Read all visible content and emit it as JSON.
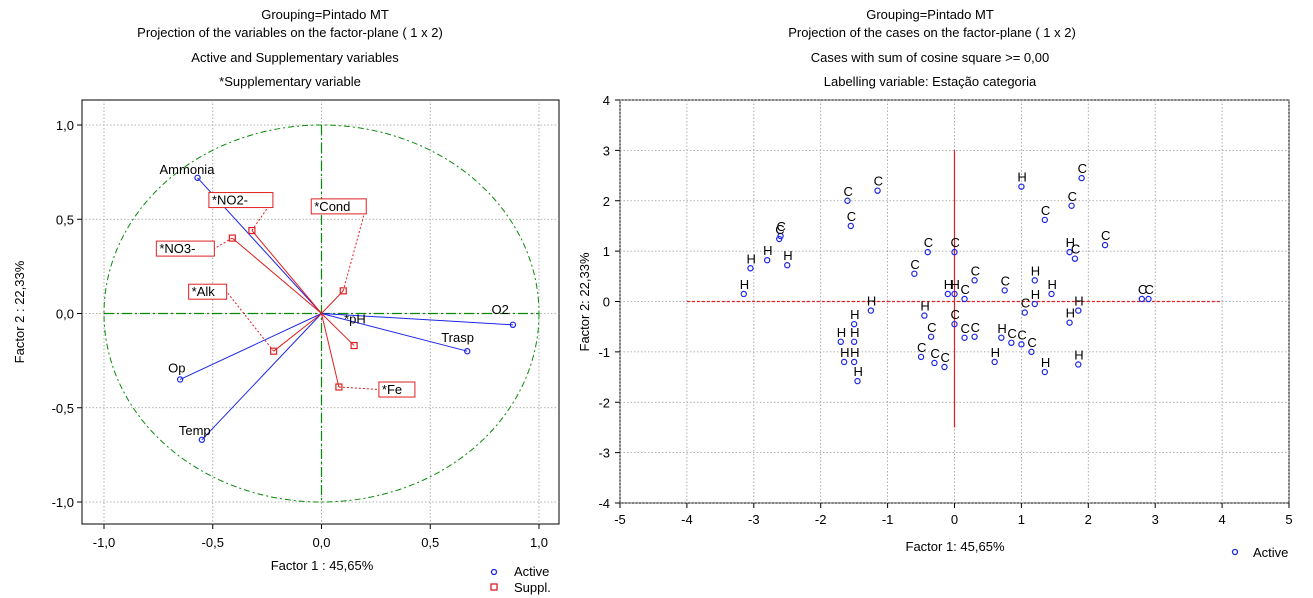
{
  "chart_data": [
    {
      "type": "scatter",
      "title_lines": [
        "Grouping=Pintado MT",
        "Projection of the variables on the factor-plane (  1 x    2)",
        "Active and Supplementary variables",
        "*Supplementary variable"
      ],
      "xlabel": "Factor 1 : 45,65%",
      "ylabel": "Factor 2 : 22,33%",
      "xlim": [
        -1.0,
        1.0
      ],
      "ylim": [
        -1.0,
        1.0
      ],
      "x_ticks": [
        "-1,0",
        "-0,5",
        "0,0",
        "0,5",
        "1,0"
      ],
      "y_ticks": [
        "1,0",
        "0,5",
        "0,0",
        "-0,5",
        "-1,0"
      ],
      "unit_circle": true,
      "active": [
        {
          "name": "Ammonia",
          "x": -0.57,
          "y": 0.72
        },
        {
          "name": "O2",
          "x": 0.88,
          "y": -0.06
        },
        {
          "name": "Trasp",
          "x": 0.67,
          "y": -0.2
        },
        {
          "name": "Op",
          "x": -0.65,
          "y": -0.35
        },
        {
          "name": "Temp",
          "x": -0.55,
          "y": -0.67
        }
      ],
      "supplementary": [
        {
          "name": "*NO2-",
          "x": -0.32,
          "y": 0.44
        },
        {
          "name": "*NO3-",
          "x": -0.41,
          "y": 0.4
        },
        {
          "name": "*Cond",
          "x": 0.1,
          "y": 0.12
        },
        {
          "name": "*Alk",
          "x": -0.22,
          "y": -0.2
        },
        {
          "name": "*pH",
          "x": 0.15,
          "y": -0.17
        },
        {
          "name": "*Fe",
          "x": 0.08,
          "y": -0.39
        }
      ],
      "legend": [
        "Active",
        "Suppl."
      ],
      "legend_position": "bottom-right",
      "colors": {
        "active": "#1c25e8",
        "supplementary": "#e02020",
        "axes": "#0a8a0a",
        "circle": "#0a8a0a"
      }
    },
    {
      "type": "scatter",
      "title_lines": [
        "Grouping=Pintado MT",
        "Projection of the cases on the factor-plane (  1 x    2)",
        "Cases with sum of cosine square >=   0,00",
        "Labelling variable: Estação categoria"
      ],
      "xlabel": "Factor 1: 45,65%",
      "ylabel": "Factor 2: 22,33%",
      "xlim": [
        -5,
        5
      ],
      "ylim": [
        -4,
        4
      ],
      "x_ticks": [
        "-5",
        "-4",
        "-3",
        "-2",
        "-1",
        "0",
        "1",
        "2",
        "3",
        "4",
        "5"
      ],
      "y_ticks": [
        "4",
        "3",
        "2",
        "1",
        "0",
        "-1",
        "-2",
        "-3",
        "-4"
      ],
      "legend": [
        "Active"
      ],
      "legend_position": "bottom-right",
      "colors": {
        "points": "#1c25e8",
        "axes": "#e02020"
      },
      "points": [
        {
          "label": "C",
          "x": -1.15,
          "y": 2.2
        },
        {
          "label": "C",
          "x": -1.6,
          "y": 2.0
        },
        {
          "label": "C",
          "x": -1.55,
          "y": 1.5
        },
        {
          "label": "C",
          "x": -2.6,
          "y": 1.3
        },
        {
          "label": "C",
          "x": -2.62,
          "y": 1.24
        },
        {
          "label": "H",
          "x": -2.8,
          "y": 0.82
        },
        {
          "label": "H",
          "x": -2.5,
          "y": 0.72
        },
        {
          "label": "H",
          "x": -3.05,
          "y": 0.66
        },
        {
          "label": "H",
          "x": -3.15,
          "y": 0.15
        },
        {
          "label": "H",
          "x": 1.0,
          "y": 2.28
        },
        {
          "label": "C",
          "x": 1.9,
          "y": 2.45
        },
        {
          "label": "C",
          "x": 1.75,
          "y": 1.9
        },
        {
          "label": "C",
          "x": 1.35,
          "y": 1.62
        },
        {
          "label": "C",
          "x": 2.25,
          "y": 1.12
        },
        {
          "label": "H",
          "x": 1.72,
          "y": 0.98
        },
        {
          "label": "C",
          "x": 1.8,
          "y": 0.85
        },
        {
          "label": "C",
          "x": -0.4,
          "y": 0.98
        },
        {
          "label": "C",
          "x": 0.0,
          "y": 0.98
        },
        {
          "label": "C",
          "x": -0.6,
          "y": 0.55
        },
        {
          "label": "C",
          "x": 0.3,
          "y": 0.42
        },
        {
          "label": "H",
          "x": 1.2,
          "y": 0.42
        },
        {
          "label": "C",
          "x": 0.75,
          "y": 0.22
        },
        {
          "label": "H",
          "x": -0.1,
          "y": 0.15
        },
        {
          "label": "H",
          "x": 0.0,
          "y": 0.15
        },
        {
          "label": "C",
          "x": 0.15,
          "y": 0.05
        },
        {
          "label": "H",
          "x": 1.45,
          "y": 0.15
        },
        {
          "label": "H",
          "x": -1.25,
          "y": -0.18
        },
        {
          "label": "H",
          "x": -0.45,
          "y": -0.28
        },
        {
          "label": "C",
          "x": 1.05,
          "y": -0.22
        },
        {
          "label": "H",
          "x": 1.2,
          "y": -0.05
        },
        {
          "label": "H",
          "x": 1.85,
          "y": -0.18
        },
        {
          "label": "H",
          "x": 1.72,
          "y": -0.42
        },
        {
          "label": "H",
          "x": -1.5,
          "y": -0.45
        },
        {
          "label": "H",
          "x": -1.7,
          "y": -0.8
        },
        {
          "label": "H",
          "x": -1.5,
          "y": -0.8
        },
        {
          "label": "H",
          "x": -1.65,
          "y": -1.2
        },
        {
          "label": "H",
          "x": -1.5,
          "y": -1.2
        },
        {
          "label": "H",
          "x": -1.45,
          "y": -1.58
        },
        {
          "label": "C",
          "x": -0.35,
          "y": -0.7
        },
        {
          "label": "C",
          "x": -0.5,
          "y": -1.1
        },
        {
          "label": "C",
          "x": -0.3,
          "y": -1.22
        },
        {
          "label": "C",
          "x": -0.15,
          "y": -1.3
        },
        {
          "label": "C",
          "x": 0.0,
          "y": -0.45
        },
        {
          "label": "C",
          "x": 0.15,
          "y": -0.72
        },
        {
          "label": "C",
          "x": 0.3,
          "y": -0.7
        },
        {
          "label": "H",
          "x": 0.7,
          "y": -0.72
        },
        {
          "label": "C",
          "x": 0.85,
          "y": -0.82
        },
        {
          "label": "H",
          "x": 0.6,
          "y": -1.2
        },
        {
          "label": "C",
          "x": 1.0,
          "y": -0.85
        },
        {
          "label": "C",
          "x": 1.15,
          "y": -1.0
        },
        {
          "label": "H",
          "x": 1.35,
          "y": -1.4
        },
        {
          "label": "H",
          "x": 1.85,
          "y": -1.25
        },
        {
          "label": "C",
          "x": 2.8,
          "y": 0.05
        },
        {
          "label": "C",
          "x": 2.9,
          "y": 0.05
        }
      ]
    }
  ]
}
